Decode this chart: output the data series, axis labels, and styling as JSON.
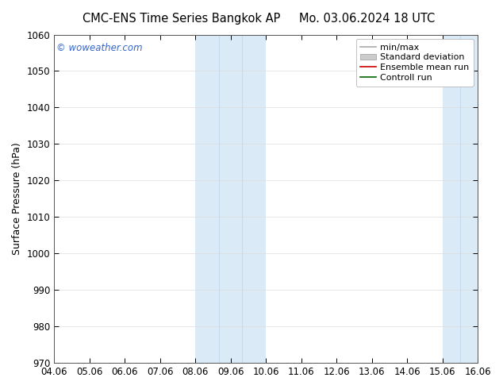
{
  "title_left": "CMC-ENS Time Series Bangkok AP",
  "title_right": "Mo. 03.06.2024 18 UTC",
  "ylabel": "Surface Pressure (hPa)",
  "ylim": [
    970,
    1060
  ],
  "yticks": [
    970,
    980,
    990,
    1000,
    1010,
    1020,
    1030,
    1040,
    1050,
    1060
  ],
  "xtick_labels": [
    "04.06",
    "05.06",
    "06.06",
    "07.06",
    "08.06",
    "09.06",
    "10.06",
    "11.06",
    "12.06",
    "13.06",
    "14.06",
    "15.06",
    "16.06"
  ],
  "xtick_positions": [
    0,
    1,
    2,
    3,
    4,
    5,
    6,
    7,
    8,
    9,
    10,
    11,
    12
  ],
  "xlim": [
    0,
    12
  ],
  "shaded_bands": [
    {
      "xstart": 4.0,
      "xend": 4.67,
      "color": "#daeaf6"
    },
    {
      "xstart": 4.67,
      "xend": 5.33,
      "color": "#daeaf6"
    },
    {
      "xstart": 5.33,
      "xend": 6.0,
      "color": "#daeaf6"
    },
    {
      "xstart": 11.0,
      "xend": 11.5,
      "color": "#daeaf6"
    },
    {
      "xstart": 11.5,
      "xend": 12.0,
      "color": "#daeaf6"
    }
  ],
  "watermark": "© woweather.com",
  "watermark_color": "#3366cc",
  "legend_entries": [
    {
      "label": "min/max",
      "color": "#aaaaaa",
      "lw": 1.2,
      "type": "line"
    },
    {
      "label": "Standard deviation",
      "color": "#cccccc",
      "lw": 1.0,
      "type": "box"
    },
    {
      "label": "Ensemble mean run",
      "color": "#cc0000",
      "lw": 1.2,
      "type": "line"
    },
    {
      "label": "Controll run",
      "color": "#006600",
      "lw": 1.2,
      "type": "line"
    }
  ],
  "background_color": "#ffffff",
  "grid_color": "#dddddd",
  "title_fontsize": 10.5,
  "ylabel_fontsize": 9,
  "tick_fontsize": 8.5,
  "legend_fontsize": 8
}
